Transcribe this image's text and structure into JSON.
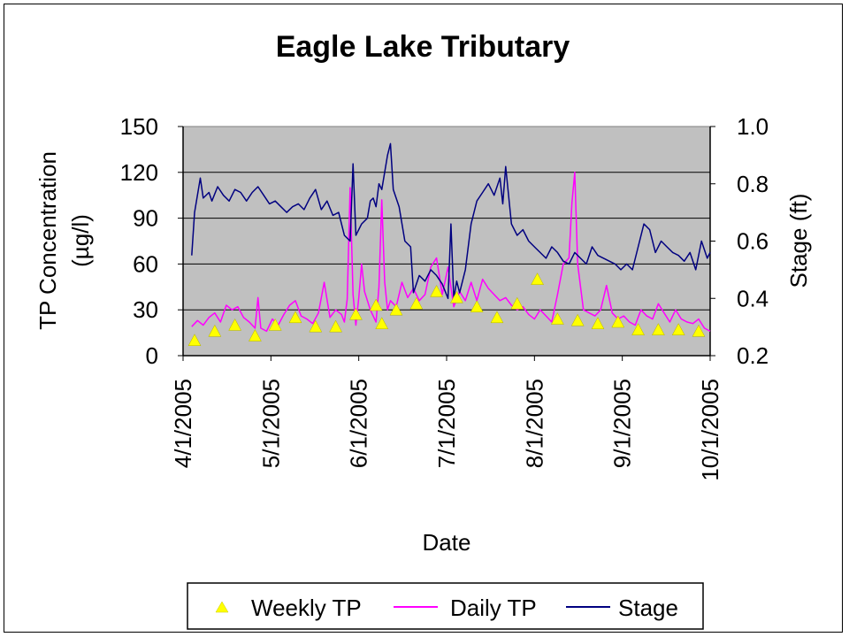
{
  "chart_data": {
    "type": "line",
    "title": "Eagle Lake Tributary",
    "xlabel": "Date",
    "ylabel": "TP Concentration (µg/l)",
    "ylabel_line1": "TP Concentration",
    "ylabel_line2": "(µg/l)",
    "y2label": "Stage (ft)",
    "x_range": [
      "2005-04-01",
      "2005-10-01"
    ],
    "x_ticks": [
      "4/1/2005",
      "5/1/2005",
      "6/1/2005",
      "7/1/2005",
      "8/1/2005",
      "9/1/2005",
      "10/1/2005"
    ],
    "ylim": [
      0,
      150
    ],
    "y_ticks": [
      "0",
      "30",
      "60",
      "90",
      "120",
      "150"
    ],
    "y2lim": [
      0.2,
      1.0
    ],
    "y2_ticks": [
      "0.2",
      "0.4",
      "0.6",
      "0.8",
      "1.0"
    ],
    "grid": true,
    "plot_background": "#c0c0c0",
    "legend_position": "bottom",
    "series": [
      {
        "name": "Weekly TP",
        "marker": "triangle",
        "color": "#ffff00",
        "axis": "left",
        "x": [
          "2005-04-05",
          "2005-04-12",
          "2005-04-19",
          "2005-04-26",
          "2005-05-03",
          "2005-05-10",
          "2005-05-17",
          "2005-05-24",
          "2005-05-31",
          "2005-06-07",
          "2005-06-09",
          "2005-06-14",
          "2005-06-21",
          "2005-06-28",
          "2005-07-05",
          "2005-07-12",
          "2005-07-19",
          "2005-07-26",
          "2005-08-02",
          "2005-08-09",
          "2005-08-16",
          "2005-08-23",
          "2005-08-30",
          "2005-09-06",
          "2005-09-13",
          "2005-09-20",
          "2005-09-27"
        ],
        "y": [
          10,
          16,
          20,
          13,
          20,
          25,
          19,
          19,
          27,
          33,
          21,
          30,
          34,
          42,
          38,
          32,
          25,
          34,
          50,
          24,
          23,
          21,
          22,
          17,
          17,
          17,
          16
        ]
      },
      {
        "name": "Daily TP",
        "color": "#ff00ff",
        "axis": "left",
        "x": [
          "2005-04-04",
          "2005-04-06",
          "2005-04-08",
          "2005-04-10",
          "2005-04-12",
          "2005-04-14",
          "2005-04-16",
          "2005-04-18",
          "2005-04-20",
          "2005-04-22",
          "2005-04-24",
          "2005-04-26",
          "2005-04-27",
          "2005-04-28",
          "2005-04-30",
          "2005-05-02",
          "2005-05-04",
          "2005-05-06",
          "2005-05-08",
          "2005-05-10",
          "2005-05-12",
          "2005-05-14",
          "2005-05-16",
          "2005-05-18",
          "2005-05-20",
          "2005-05-22",
          "2005-05-24",
          "2005-05-26",
          "2005-05-27",
          "2005-05-28",
          "2005-05-29",
          "2005-05-30",
          "2005-05-31",
          "2005-06-01",
          "2005-06-02",
          "2005-06-03",
          "2005-06-05",
          "2005-06-07",
          "2005-06-08",
          "2005-06-09",
          "2005-06-10",
          "2005-06-11",
          "2005-06-12",
          "2005-06-14",
          "2005-06-16",
          "2005-06-18",
          "2005-06-20",
          "2005-06-22",
          "2005-06-24",
          "2005-06-26",
          "2005-06-28",
          "2005-06-30",
          "2005-07-02",
          "2005-07-04",
          "2005-07-06",
          "2005-07-08",
          "2005-07-10",
          "2005-07-12",
          "2005-07-14",
          "2005-07-16",
          "2005-07-18",
          "2005-07-20",
          "2005-07-22",
          "2005-07-24",
          "2005-07-26",
          "2005-07-28",
          "2005-07-30",
          "2005-08-01",
          "2005-08-03",
          "2005-08-05",
          "2005-08-07",
          "2005-08-09",
          "2005-08-11",
          "2005-08-13",
          "2005-08-14",
          "2005-08-15",
          "2005-08-16",
          "2005-08-18",
          "2005-08-20",
          "2005-08-22",
          "2005-08-24",
          "2005-08-26",
          "2005-08-28",
          "2005-08-30",
          "2005-09-01",
          "2005-09-03",
          "2005-09-05",
          "2005-09-07",
          "2005-09-09",
          "2005-09-11",
          "2005-09-13",
          "2005-09-15",
          "2005-09-17",
          "2005-09-19",
          "2005-09-21",
          "2005-09-23",
          "2005-09-25",
          "2005-09-27",
          "2005-09-29",
          "2005-10-01"
        ],
        "y": [
          19,
          23,
          20,
          25,
          28,
          22,
          33,
          30,
          32,
          25,
          22,
          18,
          38,
          18,
          16,
          24,
          20,
          27,
          33,
          36,
          26,
          24,
          21,
          28,
          48,
          25,
          30,
          27,
          22,
          37,
          110,
          40,
          20,
          38,
          60,
          42,
          30,
          22,
          45,
          102,
          48,
          30,
          36,
          32,
          48,
          38,
          44,
          36,
          40,
          58,
          64,
          40,
          58,
          32,
          42,
          36,
          48,
          36,
          50,
          44,
          40,
          36,
          38,
          33,
          30,
          32,
          27,
          24,
          30,
          26,
          22,
          40,
          60,
          64,
          100,
          120,
          60,
          30,
          28,
          26,
          30,
          46,
          28,
          24,
          26,
          22,
          20,
          30,
          26,
          24,
          34,
          28,
          22,
          30,
          24,
          22,
          21,
          24,
          18,
          16
        ]
      },
      {
        "name": "Stage",
        "color": "#000080",
        "axis": "right",
        "x": [
          "2005-04-04",
          "2005-04-05",
          "2005-04-07",
          "2005-04-08",
          "2005-04-10",
          "2005-04-11",
          "2005-04-13",
          "2005-04-15",
          "2005-04-17",
          "2005-04-19",
          "2005-04-21",
          "2005-04-23",
          "2005-04-25",
          "2005-04-27",
          "2005-04-29",
          "2005-05-01",
          "2005-05-03",
          "2005-05-05",
          "2005-05-07",
          "2005-05-09",
          "2005-05-11",
          "2005-05-13",
          "2005-05-15",
          "2005-05-17",
          "2005-05-19",
          "2005-05-21",
          "2005-05-23",
          "2005-05-25",
          "2005-05-27",
          "2005-05-29",
          "2005-05-30",
          "2005-05-31",
          "2005-06-02",
          "2005-06-04",
          "2005-06-05",
          "2005-06-06",
          "2005-06-07",
          "2005-06-08",
          "2005-06-09",
          "2005-06-11",
          "2005-06-12",
          "2005-06-13",
          "2005-06-15",
          "2005-06-17",
          "2005-06-19",
          "2005-06-20",
          "2005-06-22",
          "2005-06-24",
          "2005-06-26",
          "2005-06-28",
          "2005-06-30",
          "2005-07-02",
          "2005-07-03",
          "2005-07-04",
          "2005-07-05",
          "2005-07-06",
          "2005-07-08",
          "2005-07-10",
          "2005-07-12",
          "2005-07-14",
          "2005-07-16",
          "2005-07-18",
          "2005-07-20",
          "2005-07-21",
          "2005-07-22",
          "2005-07-24",
          "2005-07-26",
          "2005-07-28",
          "2005-07-30",
          "2005-08-01",
          "2005-08-03",
          "2005-08-05",
          "2005-08-07",
          "2005-08-09",
          "2005-08-11",
          "2005-08-13",
          "2005-08-15",
          "2005-08-17",
          "2005-08-19",
          "2005-08-21",
          "2005-08-23",
          "2005-08-25",
          "2005-08-27",
          "2005-08-29",
          "2005-08-31",
          "2005-09-02",
          "2005-09-04",
          "2005-09-06",
          "2005-09-08",
          "2005-09-10",
          "2005-09-12",
          "2005-09-14",
          "2005-09-16",
          "2005-09-18",
          "2005-09-20",
          "2005-09-22",
          "2005-09-24",
          "2005-09-26",
          "2005-09-28",
          "2005-09-30",
          "2005-10-01"
        ],
        "y": [
          0.55,
          0.7,
          0.82,
          0.75,
          0.77,
          0.74,
          0.79,
          0.76,
          0.74,
          0.78,
          0.77,
          0.74,
          0.77,
          0.79,
          0.76,
          0.73,
          0.74,
          0.72,
          0.7,
          0.72,
          0.73,
          0.71,
          0.75,
          0.78,
          0.71,
          0.74,
          0.69,
          0.7,
          0.62,
          0.6,
          0.87,
          0.62,
          0.66,
          0.68,
          0.74,
          0.75,
          0.72,
          0.8,
          0.78,
          0.9,
          0.94,
          0.78,
          0.72,
          0.6,
          0.58,
          0.42,
          0.48,
          0.46,
          0.5,
          0.48,
          0.45,
          0.4,
          0.66,
          0.4,
          0.46,
          0.42,
          0.5,
          0.66,
          0.74,
          0.77,
          0.8,
          0.76,
          0.82,
          0.73,
          0.86,
          0.66,
          0.62,
          0.64,
          0.6,
          0.58,
          0.56,
          0.54,
          0.58,
          0.56,
          0.53,
          0.52,
          0.56,
          0.54,
          0.52,
          0.58,
          0.55,
          0.54,
          0.53,
          0.52,
          0.5,
          0.52,
          0.5,
          0.58,
          0.66,
          0.64,
          0.56,
          0.6,
          0.58,
          0.56,
          0.55,
          0.53,
          0.56,
          0.5,
          0.6,
          0.54,
          0.56
        ]
      }
    ]
  },
  "legend": {
    "items": [
      "Weekly TP",
      "Daily TP",
      "Stage"
    ]
  }
}
